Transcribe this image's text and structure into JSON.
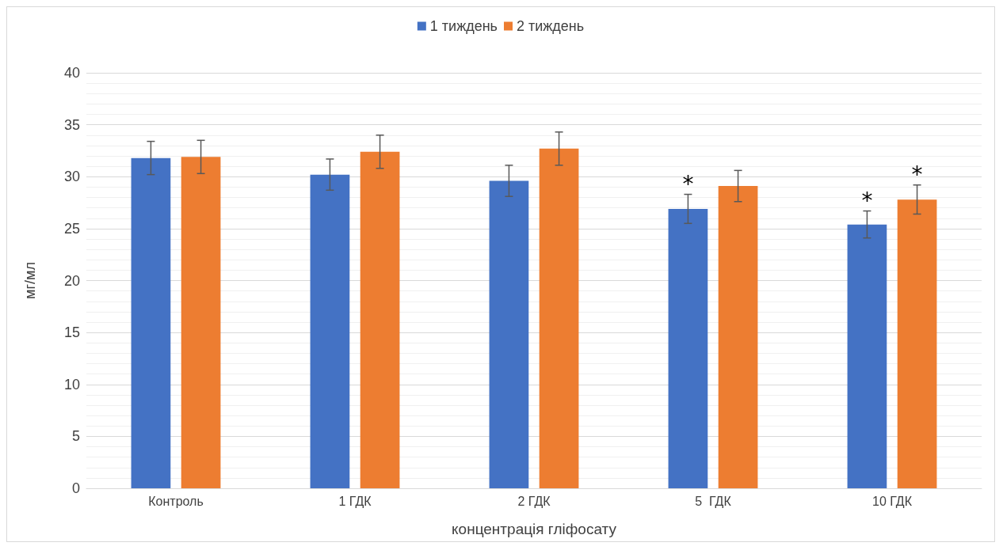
{
  "chart_data": {
    "type": "bar",
    "xlabel": "концентрація гліфосату",
    "ylabel": "мг/мл",
    "categories": [
      "Контроль",
      "1 ГДК",
      "2 ГДК",
      "5  ГДК",
      "10 ГДК"
    ],
    "series": [
      {
        "name": "1 тиждень",
        "color": "#4472c4",
        "values": [
          31.8,
          30.2,
          29.6,
          26.9,
          25.4
        ],
        "errors": [
          1.6,
          1.5,
          1.5,
          1.4,
          1.3
        ],
        "value_labels": [
          null,
          null,
          null,
          "*",
          "*"
        ]
      },
      {
        "name": "2 тиждень",
        "color": "#ed7d31",
        "values": [
          31.9,
          32.4,
          32.7,
          29.1,
          27.8
        ],
        "errors": [
          1.6,
          1.6,
          1.6,
          1.5,
          1.4
        ],
        "value_labels": [
          null,
          null,
          null,
          null,
          "*"
        ]
      }
    ],
    "ylim": [
      0,
      40
    ],
    "yticks": [
      0,
      5,
      10,
      15,
      20,
      25,
      30,
      35,
      40
    ],
    "grid": "y",
    "legend": "top"
  }
}
